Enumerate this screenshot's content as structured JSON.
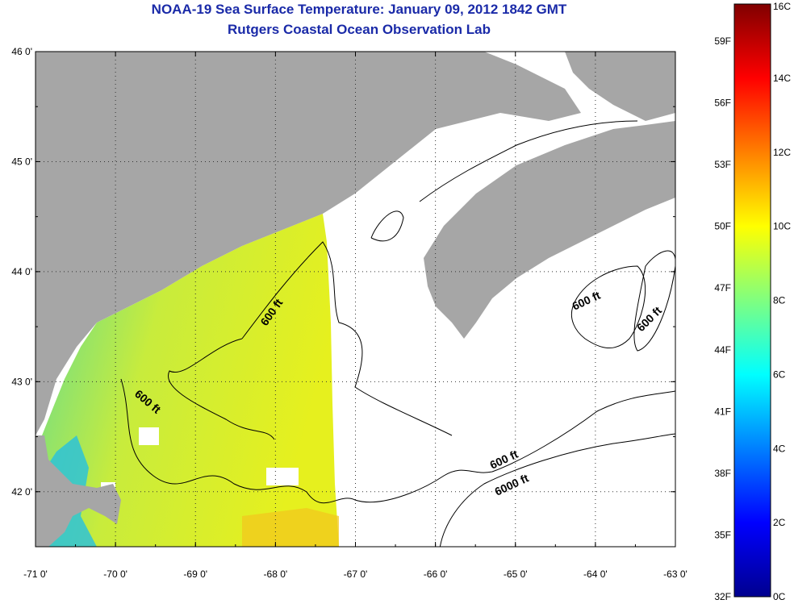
{
  "title_line1": "NOAA-19 Sea Surface Temperature:  January 09, 2012 1842 GMT",
  "title_line2": "Rutgers Coastal Ocean Observation Lab",
  "map": {
    "lat_labels": [
      "46 0'",
      "45 0'",
      "44 0'",
      "43 0'",
      "42 0'"
    ],
    "lat_values": [
      46,
      45,
      44,
      43,
      42
    ],
    "lon_labels": [
      "-71 0'",
      "-70 0'",
      "-69 0'",
      "-68 0'",
      "-67 0'",
      "-66 0'",
      "-65 0'",
      "-64 0'",
      "-63 0'"
    ],
    "lon_values": [
      -71,
      -70,
      -69,
      -68,
      -67,
      -66,
      -65,
      -64,
      -63
    ],
    "lat_range": [
      41.5,
      46.0
    ],
    "lon_range": [
      -71.0,
      -63.0
    ],
    "contour_labels": [
      "600 ft",
      "600 ft",
      "600 ft",
      "600 ft",
      "600 ft",
      "6000 ft"
    ],
    "land_color": "#a6a6a6",
    "water_nodata_color": "#ffffff"
  },
  "colorbar": {
    "celsius_labels": [
      "16C",
      "14C",
      "12C",
      "10C",
      "8C",
      "6C",
      "4C",
      "2C",
      "0C"
    ],
    "fahrenheit_labels": [
      "59F",
      "56F",
      "53F",
      "50F",
      "47F",
      "44F",
      "41F",
      "38F",
      "35F",
      "32F"
    ],
    "range_celsius": [
      0,
      16
    ],
    "colormap": "jet"
  }
}
